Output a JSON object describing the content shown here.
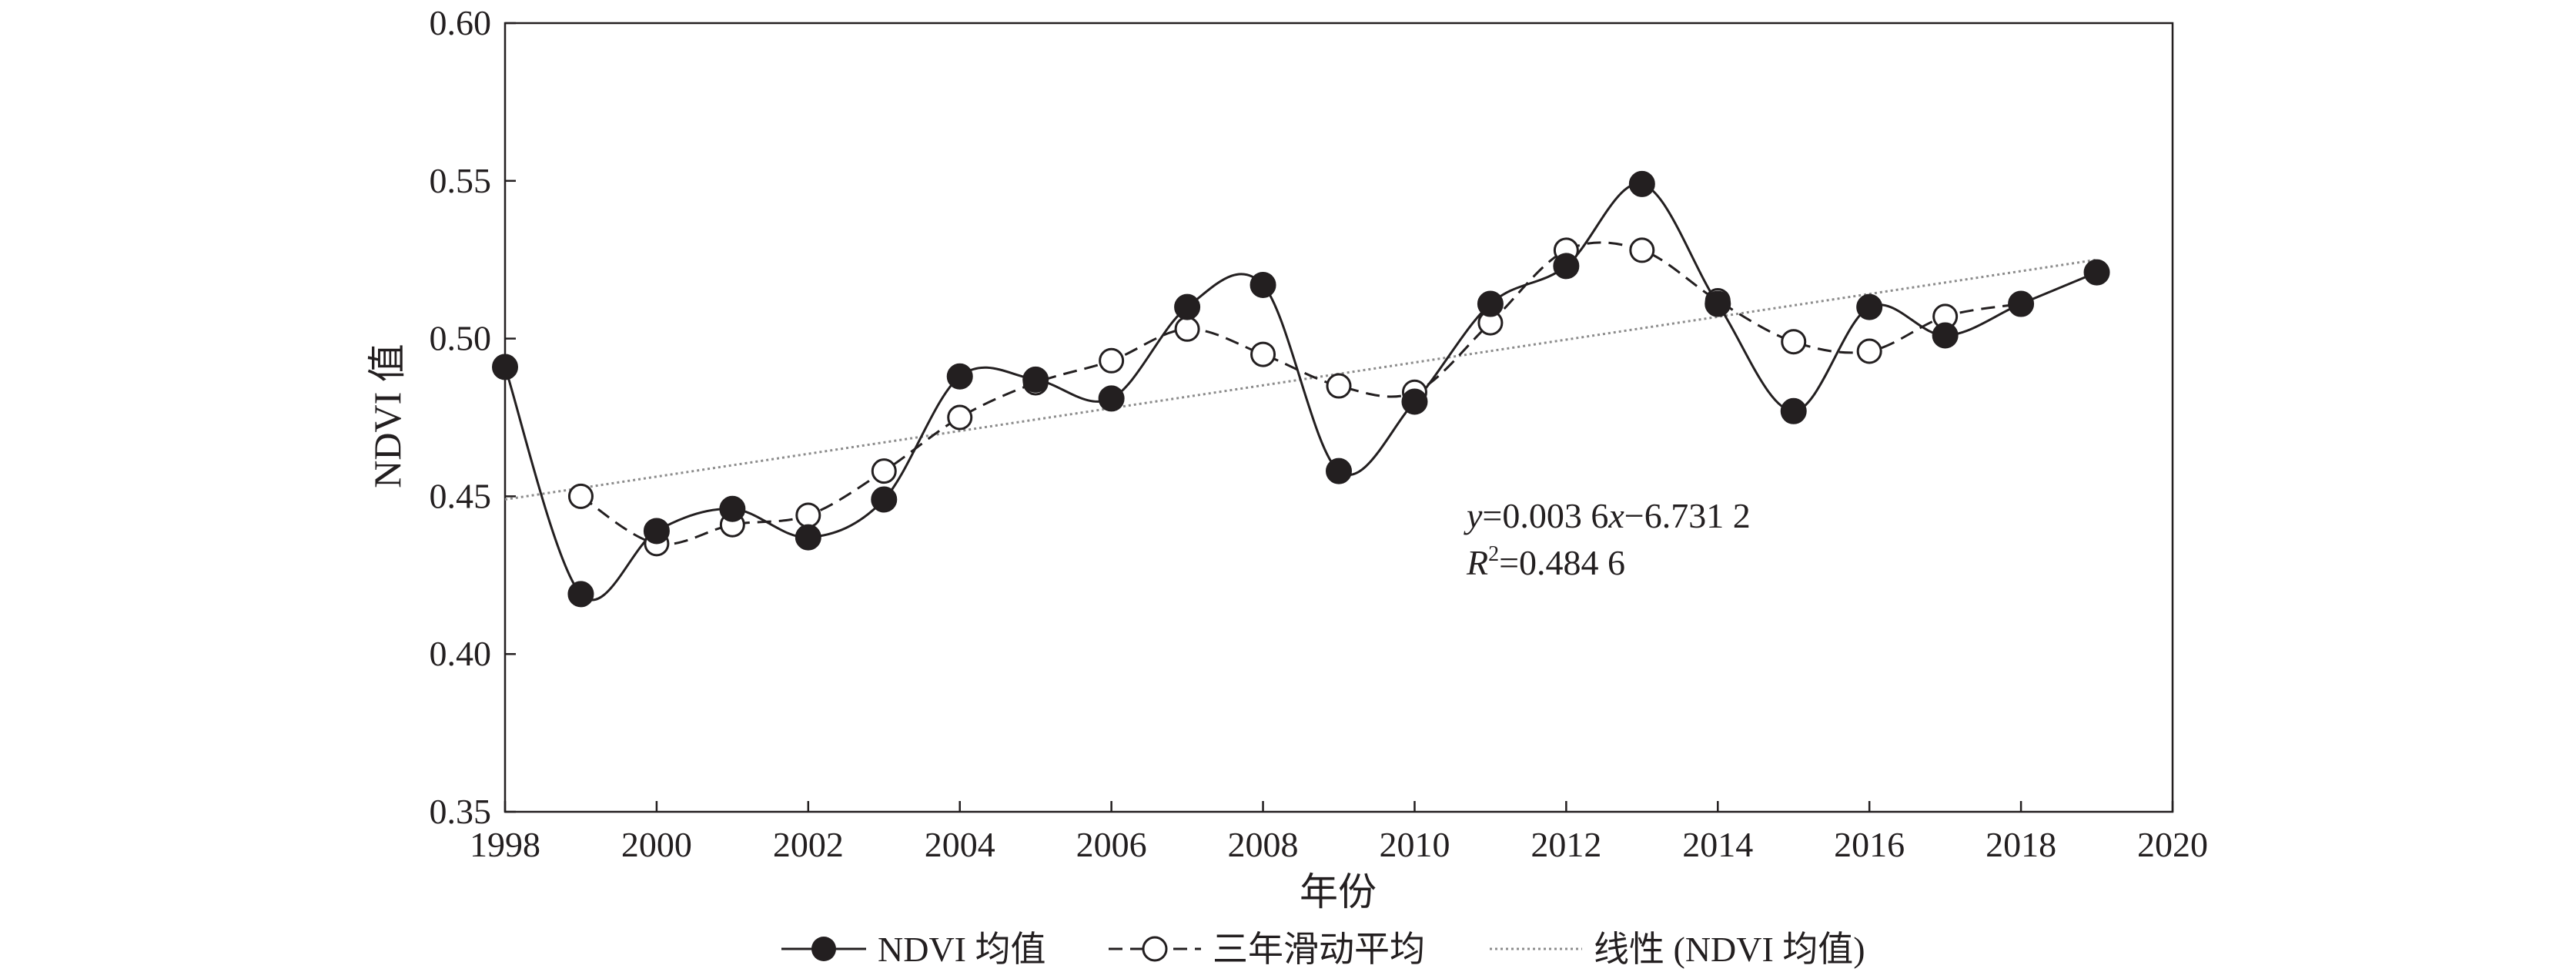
{
  "chart_data": {
    "type": "line",
    "title": "",
    "xlabel": "年份",
    "ylabel": "NDVI 值",
    "xlim": [
      1998,
      2020
    ],
    "ylim": [
      0.35,
      0.6
    ],
    "x_ticks": [
      1998,
      2000,
      2002,
      2004,
      2006,
      2008,
      2010,
      2012,
      2014,
      2016,
      2018,
      2020
    ],
    "y_ticks": [
      0.35,
      0.4,
      0.45,
      0.5,
      0.55,
      0.6
    ],
    "x_tick_labels": [
      "1998",
      "2000",
      "2002",
      "2004",
      "2006",
      "2008",
      "2010",
      "2012",
      "2014",
      "2016",
      "2018",
      "2020"
    ],
    "y_tick_labels": [
      "0.35",
      "0.40",
      "0.45",
      "0.50",
      "0.55",
      "0.60"
    ],
    "grid": false,
    "legend_position": "bottom",
    "series": [
      {
        "name": "NDVI 均值",
        "style": "solid line, filled circle markers, smoothed",
        "x": [
          1998,
          1999,
          2000,
          2001,
          2002,
          2003,
          2004,
          2005,
          2006,
          2007,
          2008,
          2009,
          2010,
          2011,
          2012,
          2013,
          2014,
          2015,
          2016,
          2017,
          2018,
          2019
        ],
        "values": [
          0.491,
          0.419,
          0.439,
          0.446,
          0.437,
          0.449,
          0.488,
          0.487,
          0.481,
          0.51,
          0.517,
          0.458,
          0.48,
          0.511,
          0.523,
          0.549,
          0.511,
          0.477,
          0.51,
          0.501,
          0.511,
          0.521
        ]
      },
      {
        "name": "三年滑动平均",
        "style": "dashed line, open circle markers, smoothed",
        "x": [
          1999,
          2000,
          2001,
          2002,
          2003,
          2004,
          2005,
          2006,
          2007,
          2008,
          2009,
          2010,
          2011,
          2012,
          2013,
          2014,
          2015,
          2016,
          2017,
          2018
        ],
        "values": [
          0.45,
          0.435,
          0.441,
          0.444,
          0.458,
          0.475,
          0.486,
          0.493,
          0.503,
          0.495,
          0.485,
          0.483,
          0.505,
          0.528,
          0.528,
          0.512,
          0.499,
          0.496,
          0.507,
          0.511
        ]
      },
      {
        "name": "线性 (NDVI 均值)",
        "style": "dotted gray trend line",
        "x": [
          1998,
          2019
        ],
        "values": [
          0.449,
          0.525
        ]
      }
    ],
    "annotations": [
      {
        "id": "equation",
        "text": "y=0.003 6x−6.731 2"
      },
      {
        "id": "r2",
        "text": "R²=0.484 6"
      }
    ]
  },
  "colors": {
    "ink": "#231f20",
    "trend": "#8c8c8c",
    "background": "#ffffff"
  },
  "annotation_text": {
    "eq_y": "y",
    "eq_mid": "=0.003 6",
    "eq_x": "x",
    "eq_rest": "−6.731 2",
    "r2_r": "R",
    "r2_sup": "2",
    "r2_rest": "=0.484 6"
  }
}
